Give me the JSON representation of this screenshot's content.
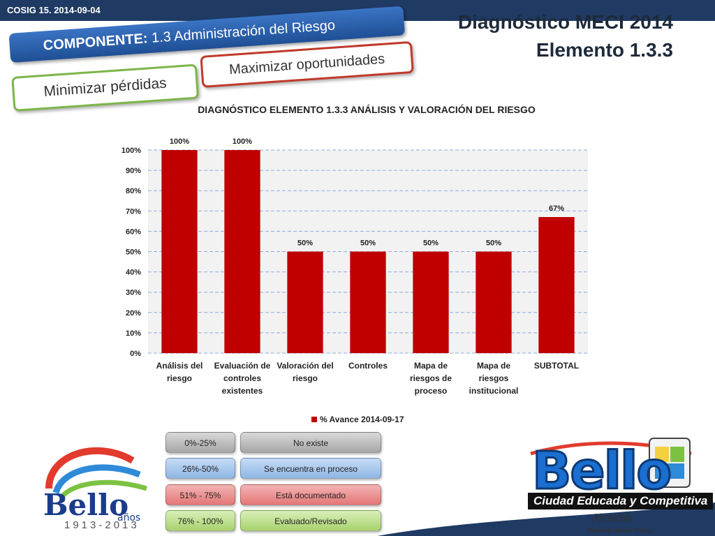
{
  "header": {
    "cosig": "COSIG 15. 2014-09-04",
    "title_line1": "Diagnóstico MECI 2014",
    "title_line2": "Elemento 1.3.3"
  },
  "banners": {
    "componente_label": "COMPONENTE:",
    "componente_value": "1.3 Administración del Riesgo",
    "maximizar": "Maximizar oportunidades",
    "minimizar": "Minimizar pérdidas"
  },
  "chart_data": {
    "type": "bar",
    "title": "DIAGNÓSTICO ELEMENTO 1.3.3 ANÁLISIS Y VALORACIÓN DEL RIESGO",
    "categories": [
      [
        "Análisis del",
        "riesgo"
      ],
      [
        "Evaluación de",
        "controles",
        "existentes"
      ],
      [
        "Valoración del",
        "riesgo"
      ],
      [
        "Controles"
      ],
      [
        "Mapa de",
        "riesgos de",
        "proceso"
      ],
      [
        "Mapa de",
        "riesgos",
        "institucional"
      ],
      [
        "SUBTOTAL"
      ]
    ],
    "series": [
      {
        "name": "% Avance 2014-09-17",
        "values": [
          100,
          100,
          50,
          50,
          50,
          50,
          67
        ],
        "labels": [
          "100%",
          "100%",
          "50%",
          "50%",
          "50%",
          "50%",
          "67%"
        ],
        "color": "#c00000"
      }
    ],
    "ylim": [
      0,
      100
    ],
    "yticks": [
      "0%",
      "10%",
      "20%",
      "30%",
      "40%",
      "50%",
      "60%",
      "70%",
      "80%",
      "90%",
      "100%"
    ],
    "grid": true,
    "legend_position": "bottom"
  },
  "scale": [
    {
      "range": "0%-25%",
      "meaning": "No existe"
    },
    {
      "range": "26%-50%",
      "meaning": "Se encuentra en proceso"
    },
    {
      "range": "51% - 75%",
      "meaning": "Está documentado"
    },
    {
      "range": "76% - 100%",
      "meaning": "Evaluado/Revisado"
    }
  ],
  "logos": {
    "anniversary_years": "1913-2013",
    "anniversary_word": "años",
    "anniversary_brand": "Bello",
    "city_brand": "Bello",
    "city_slogan": "Ciudad Educada y Competitiva",
    "alcaldia": "Alcaldía"
  },
  "footer": {
    "elaboro": "Elaboró: Marlo Flórez"
  },
  "colors": {
    "bar": "#c00000",
    "topbar": "#1f3a63",
    "componente": "#1f4f95",
    "maximizar_border": "#c0392b",
    "minimizar_border": "#7db54a"
  }
}
